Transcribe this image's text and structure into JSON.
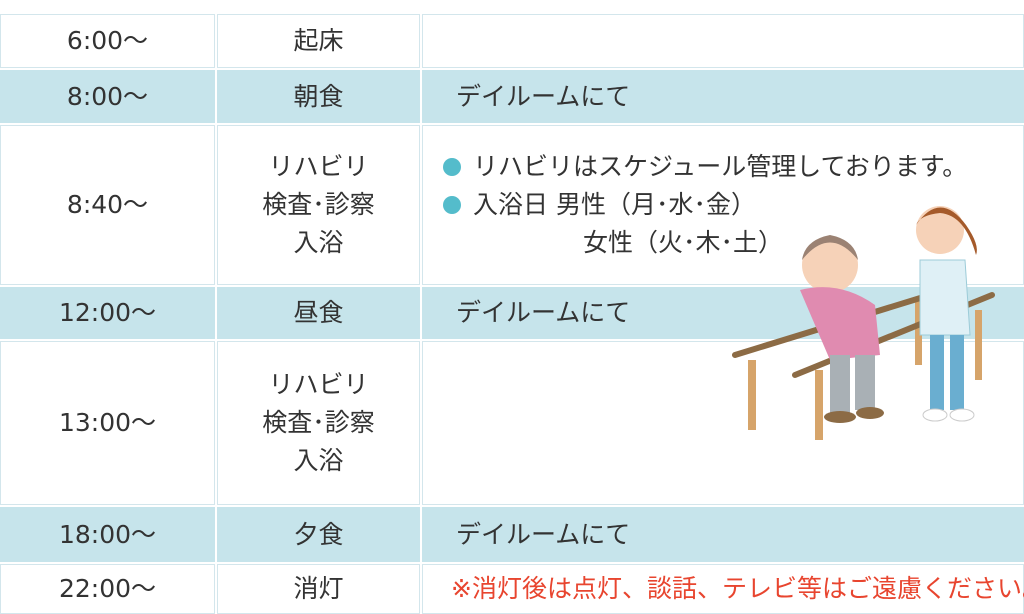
{
  "table": {
    "rows": [
      {
        "time": "6:00～",
        "activity": [
          "起床"
        ]
      },
      {
        "time": "8:00～",
        "activity": [
          "朝食"
        ],
        "note": "デイルームにて"
      },
      {
        "time": "8:40～",
        "activity": [
          "リハビリ",
          "検査･診察",
          "入浴"
        ],
        "bullets": [
          "リハビリはスケジュール管理しております。",
          "入浴日 男性（月･水･金）"
        ],
        "bullet_continuation": "女性（火･木･土）"
      },
      {
        "time": "12:00～",
        "activity": [
          "昼食"
        ],
        "note": "デイルームにて"
      },
      {
        "time": "13:00～",
        "activity": [
          "リハビリ",
          "検査･診察",
          "入浴"
        ]
      },
      {
        "time": "18:00～",
        "activity": [
          "夕食"
        ],
        "note": "デイルームにて"
      },
      {
        "time": "22:00～",
        "activity": [
          "消灯"
        ],
        "warning": "※消灯後は点灯、談話、テレビ等はご遠慮ください。"
      }
    ]
  }
}
